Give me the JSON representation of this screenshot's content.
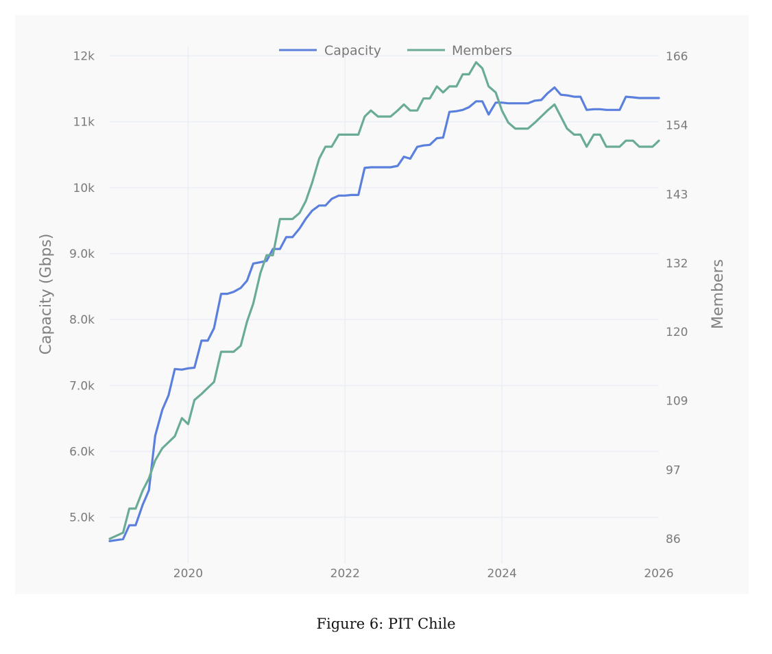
{
  "caption": "Figure 6: PIT Chile",
  "colors": {
    "capacity": "#5a7fdc",
    "members": "#6aab98",
    "grid": "#eceef6",
    "background": "#f9f9f9"
  },
  "chart_data": {
    "type": "line",
    "title": "",
    "xlabel": "",
    "ylabel": "Capacity (Gbps)",
    "y2label": "Members",
    "xlim": [
      2019.0,
      2026.0
    ],
    "ylim": [
      4300,
      12150
    ],
    "y2lim": [
      81.9,
      167.7
    ],
    "x_ticks": [
      "2020",
      "2022",
      "2024",
      "2026"
    ],
    "x_tick_values": [
      2020,
      2022,
      2024,
      2026
    ],
    "y_ticks": [
      "5.0k",
      "6.0k",
      "7.0k",
      "8.0k",
      "9.0k",
      "10k",
      "11k",
      "12k"
    ],
    "y_tick_values": [
      5000,
      6000,
      7000,
      8000,
      9000,
      10000,
      11000,
      12000
    ],
    "y2_ticks": [
      "86",
      "97",
      "109",
      "120",
      "132",
      "143",
      "154",
      "166"
    ],
    "y2_tick_values": [
      86,
      97.4,
      108.9,
      120.3,
      131.7,
      143.1,
      154.6,
      166
    ],
    "grid": true,
    "legend": {
      "position": "top-center",
      "entries": [
        "Capacity",
        "Members"
      ]
    },
    "series": [
      {
        "name": "Capacity",
        "axis": "left",
        "x": [
          2019.0,
          2019.17,
          2019.25,
          2019.33,
          2019.42,
          2019.5,
          2019.58,
          2019.67,
          2019.75,
          2019.83,
          2019.92,
          2020.0,
          2020.08,
          2020.17,
          2020.25,
          2020.33,
          2020.42,
          2020.5,
          2020.58,
          2020.67,
          2020.75,
          2020.83,
          2020.92,
          2021.0,
          2021.08,
          2021.17,
          2021.25,
          2021.33,
          2021.42,
          2021.5,
          2021.58,
          2021.67,
          2021.75,
          2021.83,
          2021.92,
          2022.0,
          2022.08,
          2022.17,
          2022.25,
          2022.33,
          2022.42,
          2022.5,
          2022.58,
          2022.67,
          2022.75,
          2022.83,
          2022.92,
          2023.0,
          2023.08,
          2023.17,
          2023.25,
          2023.33,
          2023.42,
          2023.5,
          2023.58,
          2023.67,
          2023.75,
          2023.83,
          2023.92,
          2024.0,
          2024.08,
          2024.17,
          2024.25,
          2024.33,
          2024.42,
          2024.5,
          2024.58,
          2024.67,
          2024.75,
          2024.83,
          2024.92,
          2025.0,
          2025.08,
          2025.17,
          2025.25,
          2025.33,
          2025.42,
          2025.5,
          2025.58,
          2025.67,
          2025.75,
          2025.83,
          2025.92,
          2026.0
        ],
        "values": [
          4640,
          4670,
          4880,
          4880,
          5190,
          5410,
          6240,
          6630,
          6850,
          7250,
          7240,
          7260,
          7270,
          7680,
          7680,
          7870,
          8390,
          8390,
          8420,
          8480,
          8590,
          8850,
          8870,
          8890,
          9070,
          9070,
          9250,
          9250,
          9380,
          9530,
          9650,
          9730,
          9730,
          9830,
          9880,
          9880,
          9890,
          9890,
          10300,
          10310,
          10310,
          10310,
          10310,
          10330,
          10470,
          10440,
          10620,
          10640,
          10650,
          10750,
          10760,
          11150,
          11160,
          11180,
          11220,
          11310,
          11310,
          11110,
          11290,
          11290,
          11280,
          11280,
          11280,
          11280,
          11320,
          11330,
          11430,
          11520,
          11410,
          11400,
          11380,
          11380,
          11180,
          11190,
          11190,
          11180,
          11180,
          11180,
          11380,
          11370,
          11360,
          11360,
          11360,
          11360
        ]
      },
      {
        "name": "Members",
        "axis": "right",
        "x": [
          2019.0,
          2019.17,
          2019.25,
          2019.33,
          2019.42,
          2019.5,
          2019.58,
          2019.67,
          2019.75,
          2019.83,
          2019.92,
          2020.0,
          2020.08,
          2020.17,
          2020.25,
          2020.33,
          2020.42,
          2020.5,
          2020.58,
          2020.67,
          2020.75,
          2020.83,
          2020.92,
          2021.0,
          2021.08,
          2021.17,
          2021.25,
          2021.33,
          2021.42,
          2021.5,
          2021.58,
          2021.67,
          2021.75,
          2021.83,
          2021.92,
          2022.0,
          2022.08,
          2022.17,
          2022.25,
          2022.33,
          2022.42,
          2022.5,
          2022.58,
          2022.67,
          2022.75,
          2022.83,
          2022.92,
          2023.0,
          2023.08,
          2023.17,
          2023.25,
          2023.33,
          2023.42,
          2023.5,
          2023.58,
          2023.67,
          2023.75,
          2023.83,
          2023.92,
          2024.0,
          2024.08,
          2024.17,
          2024.25,
          2024.33,
          2024.42,
          2024.5,
          2024.58,
          2024.67,
          2024.75,
          2024.83,
          2024.92,
          2025.0,
          2025.08,
          2025.17,
          2025.25,
          2025.33,
          2025.42,
          2025.5,
          2025.58,
          2025.67,
          2025.75,
          2025.83,
          2025.92,
          2026.0
        ],
        "values": [
          86,
          87,
          91,
          91,
          94,
          96,
          99,
          101,
          102,
          103,
          106,
          105,
          109,
          110,
          111,
          112,
          117,
          117,
          117,
          118,
          122,
          125,
          130,
          133,
          133,
          139,
          139,
          139,
          140,
          142,
          145,
          149,
          151,
          151,
          153,
          153,
          153,
          153,
          156,
          157,
          156,
          156,
          156,
          157,
          158,
          157,
          157,
          159,
          159,
          161,
          160,
          161,
          161,
          163,
          163,
          165,
          164,
          161,
          160,
          157,
          155,
          154,
          154,
          154,
          155,
          156,
          157,
          158,
          156,
          154,
          153,
          153,
          151,
          153,
          153,
          151,
          151,
          151,
          152,
          152,
          151,
          151,
          151,
          152
        ]
      }
    ]
  }
}
